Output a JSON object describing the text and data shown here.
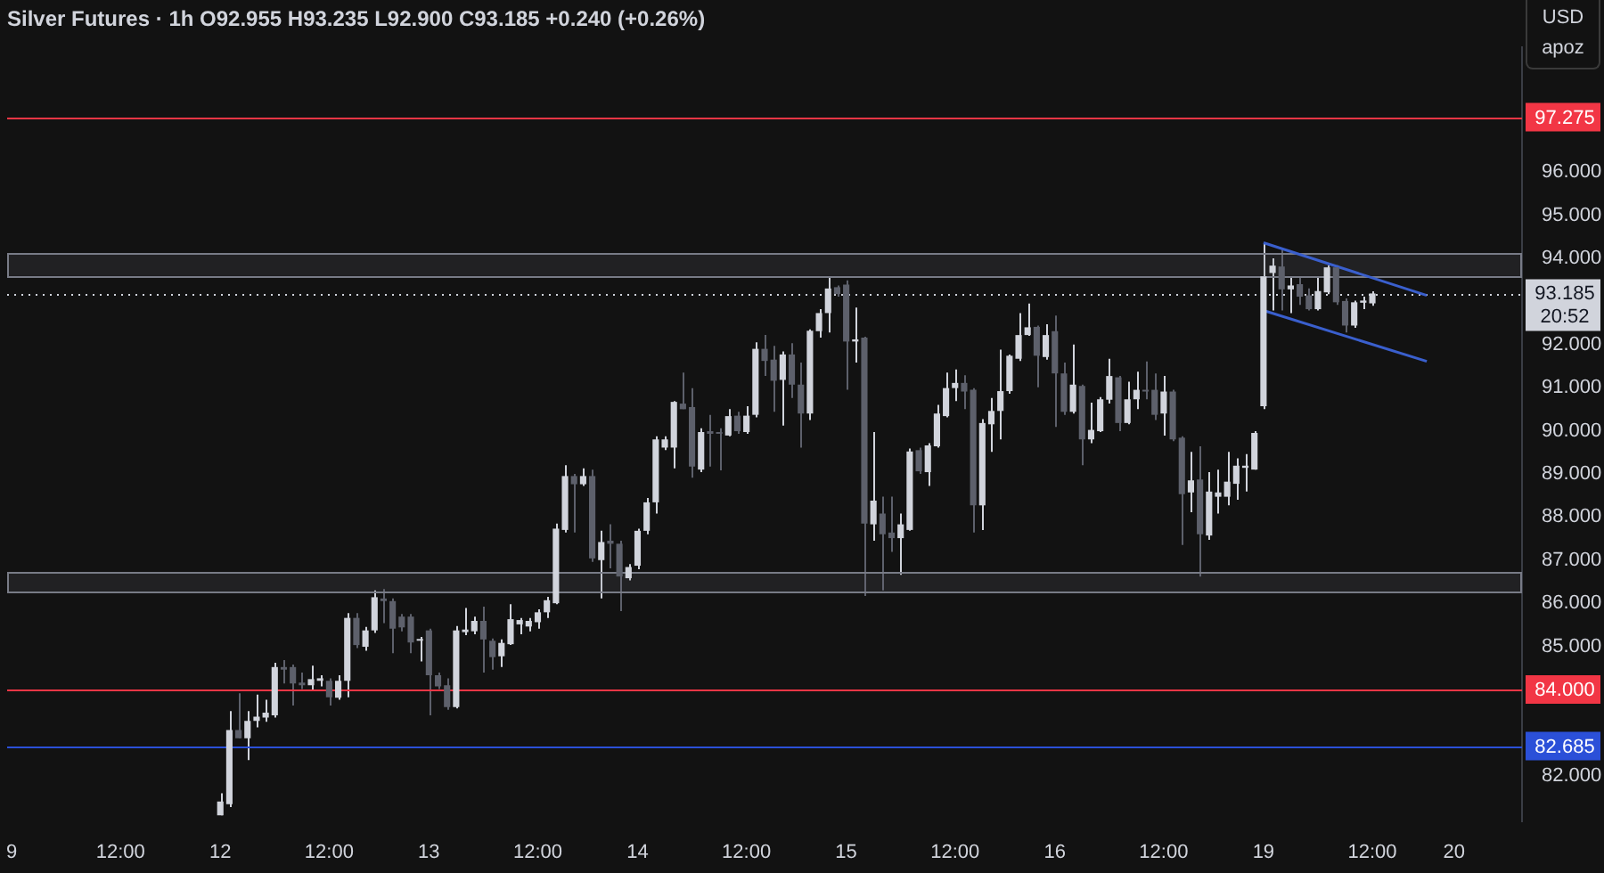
{
  "chart_data": {
    "type": "candlestick",
    "title": "Silver Futures · 1h O92.955 H93.235 L92.900 C93.185 +0.240 (+0.26%)",
    "ylabel": "USD",
    "categories": [
      "9",
      null,
      null,
      null,
      null,
      null,
      null,
      null,
      null,
      null,
      null,
      null,
      "12:00",
      null,
      null,
      null,
      null,
      null,
      null,
      null,
      null,
      null,
      null,
      "12",
      null,
      null,
      null,
      null,
      null,
      null,
      null,
      null,
      null,
      null,
      null,
      "12:00",
      null,
      null,
      null,
      null,
      null,
      null,
      null,
      null,
      null,
      null,
      "13",
      null,
      null,
      null,
      null,
      null,
      null,
      null,
      null,
      null,
      null,
      null,
      "12:00",
      null,
      null,
      null,
      null,
      null,
      null,
      null,
      null,
      null,
      null,
      "14",
      null,
      null,
      null,
      null,
      null,
      null,
      null,
      null,
      null,
      null,
      null,
      "12:00",
      null,
      null,
      null,
      null,
      null,
      null,
      null,
      null,
      null,
      null,
      "15",
      null,
      null,
      null,
      null,
      null,
      null,
      null,
      null,
      null,
      null,
      null,
      "12:00",
      null,
      null,
      null,
      null,
      null,
      null,
      null,
      null,
      null,
      null,
      "16",
      null,
      null,
      null,
      null,
      null,
      null,
      null,
      null,
      null,
      null,
      null,
      "12:00",
      null,
      null,
      null,
      null,
      null,
      null,
      null,
      null,
      null,
      null,
      "19",
      null,
      null,
      null,
      null,
      null,
      null,
      null,
      null,
      null,
      null,
      null,
      "12:00",
      null,
      null,
      null,
      null,
      null,
      null,
      null,
      null,
      "20",
      null,
      null,
      null,
      null,
      null,
      null,
      null
    ],
    "ohlc": [
      null,
      null,
      null,
      null,
      null,
      null,
      null,
      null,
      null,
      null,
      null,
      null,
      null,
      null,
      null,
      null,
      null,
      null,
      null,
      null,
      null,
      null,
      null,
      [
        81.08,
        81.59,
        81.08,
        81.4
      ],
      [
        81.34,
        83.5,
        81.27,
        83.06
      ],
      [
        83.06,
        83.91,
        82.87,
        82.87
      ],
      [
        82.87,
        83.5,
        82.36,
        83.27
      ],
      [
        83.27,
        83.88,
        83.12,
        83.37
      ],
      [
        83.35,
        83.76,
        83.25,
        83.46
      ],
      [
        83.4,
        84.62,
        83.35,
        84.52
      ],
      [
        84.52,
        84.68,
        84.14,
        84.46
      ],
      [
        84.52,
        84.58,
        83.63,
        84.14
      ],
      [
        84.16,
        84.39,
        84.01,
        84.1
      ],
      [
        84.1,
        84.55,
        83.98,
        84.24
      ],
      [
        84.2,
        84.33,
        84.07,
        84.26
      ],
      [
        84.2,
        84.26,
        83.63,
        83.82
      ],
      [
        83.81,
        84.33,
        83.76,
        84.2
      ],
      [
        84.2,
        85.77,
        83.82,
        85.66
      ],
      [
        85.66,
        85.77,
        84.96,
        85.03
      ],
      [
        84.99,
        85.45,
        84.9,
        85.37
      ],
      [
        85.37,
        86.3,
        85.31,
        86.14
      ],
      [
        86.11,
        86.33,
        85.54,
        86.05
      ],
      [
        86.05,
        86.11,
        84.84,
        85.41
      ],
      [
        85.69,
        85.75,
        85.35,
        85.44
      ],
      [
        85.69,
        85.75,
        84.84,
        85.09
      ],
      [
        85.13,
        85.22,
        84.65,
        85.16
      ],
      [
        85.37,
        85.41,
        83.4,
        84.33
      ],
      [
        84.33,
        84.39,
        84.01,
        84.07
      ],
      [
        84.1,
        84.26,
        83.53,
        83.59
      ],
      [
        83.59,
        85.47,
        83.56,
        85.37
      ],
      [
        85.33,
        85.89,
        85.26,
        85.39
      ],
      [
        85.35,
        85.69,
        85.28,
        85.59
      ],
      [
        85.59,
        85.92,
        84.39,
        85.16
      ],
      [
        85.13,
        85.18,
        84.46,
        84.75
      ],
      [
        84.77,
        85.16,
        84.52,
        85.08
      ],
      [
        85.05,
        85.98,
        85.03,
        85.63
      ],
      [
        85.51,
        85.66,
        85.28,
        85.61
      ],
      [
        85.46,
        85.66,
        85.35,
        85.59
      ],
      [
        85.56,
        85.86,
        85.41,
        85.79
      ],
      [
        85.79,
        86.15,
        85.66,
        86.07
      ],
      [
        86.0,
        87.85,
        85.98,
        87.73
      ],
      [
        87.7,
        89.2,
        87.64,
        88.95
      ],
      [
        88.95,
        89.0,
        87.64,
        88.76
      ],
      [
        88.76,
        89.13,
        88.72,
        88.95
      ],
      [
        88.95,
        89.1,
        86.96,
        87.04
      ],
      [
        87.0,
        87.68,
        86.11,
        87.42
      ],
      [
        87.45,
        87.83,
        86.81,
        87.38
      ],
      [
        87.38,
        87.45,
        85.82,
        86.62
      ],
      [
        86.58,
        86.91,
        86.53,
        86.84
      ],
      [
        86.87,
        87.73,
        86.79,
        87.68
      ],
      [
        87.68,
        88.44,
        87.6,
        88.34
      ],
      [
        88.34,
        89.87,
        88.08,
        89.8
      ],
      [
        89.61,
        89.87,
        89.55,
        89.8
      ],
      [
        89.61,
        90.69,
        89.13,
        90.67
      ],
      [
        90.63,
        91.35,
        90.5,
        90.5
      ],
      [
        90.55,
        90.99,
        88.91,
        89.17
      ],
      [
        89.1,
        90.06,
        89.04,
        89.97
      ],
      [
        89.99,
        90.37,
        89.17,
        89.93
      ],
      [
        89.97,
        90.06,
        89.08,
        89.93
      ],
      [
        89.89,
        90.5,
        89.87,
        90.34
      ],
      [
        90.35,
        90.44,
        89.93,
        89.99
      ],
      [
        89.97,
        90.57,
        89.93,
        90.35
      ],
      [
        90.37,
        92.05,
        90.31,
        91.9
      ],
      [
        91.9,
        92.22,
        91.27,
        91.62
      ],
      [
        91.65,
        91.97,
        90.44,
        91.16
      ],
      [
        91.18,
        91.84,
        90.12,
        91.77
      ],
      [
        91.77,
        92.03,
        90.76,
        91.07
      ],
      [
        91.07,
        91.58,
        89.61,
        90.4
      ],
      [
        90.4,
        92.35,
        90.25,
        92.32
      ],
      [
        92.31,
        92.82,
        92.16,
        92.73
      ],
      [
        92.73,
        93.56,
        92.28,
        93.3
      ],
      [
        93.33,
        93.37,
        93.11,
        93.17
      ],
      [
        93.39,
        93.49,
        90.95,
        92.07
      ],
      [
        92.07,
        92.86,
        91.58,
        92.12
      ],
      [
        92.16,
        92.18,
        86.17,
        87.85
      ],
      [
        87.83,
        89.97,
        87.45,
        88.38
      ],
      [
        88.08,
        88.47,
        86.3,
        87.6
      ],
      [
        87.64,
        88.47,
        87.19,
        87.51
      ],
      [
        87.51,
        88.08,
        86.66,
        87.83
      ],
      [
        87.7,
        89.59,
        87.68,
        89.52
      ],
      [
        89.55,
        89.61,
        89.0,
        89.06
      ],
      [
        89.04,
        89.71,
        88.72,
        89.66
      ],
      [
        89.64,
        90.6,
        89.61,
        90.4
      ],
      [
        90.34,
        91.35,
        90.31,
        90.99
      ],
      [
        90.99,
        91.42,
        90.69,
        91.11
      ],
      [
        91.11,
        91.29,
        90.5,
        90.91
      ],
      [
        90.95,
        90.99,
        87.64,
        88.27
      ],
      [
        88.27,
        90.27,
        87.7,
        90.18
      ],
      [
        90.15,
        90.76,
        89.51,
        90.46
      ],
      [
        90.46,
        91.88,
        89.8,
        90.92
      ],
      [
        90.92,
        91.77,
        90.86,
        91.74
      ],
      [
        91.67,
        92.73,
        91.62,
        92.22
      ],
      [
        92.22,
        92.95,
        92.2,
        92.4
      ],
      [
        92.41,
        92.44,
        91.01,
        91.74
      ],
      [
        91.71,
        92.47,
        91.65,
        92.22
      ],
      [
        92.31,
        92.67,
        90.09,
        91.33
      ],
      [
        91.33,
        91.58,
        90.37,
        90.44
      ],
      [
        90.44,
        92.0,
        90.4,
        91.07
      ],
      [
        91.04,
        91.07,
        89.2,
        89.8
      ],
      [
        89.8,
        90.65,
        89.71,
        90.02
      ],
      [
        89.99,
        90.78,
        89.97,
        90.73
      ],
      [
        90.72,
        91.67,
        90.63,
        91.27
      ],
      [
        91.24,
        91.27,
        89.99,
        90.18
      ],
      [
        90.18,
        91.14,
        90.15,
        90.73
      ],
      [
        90.73,
        91.37,
        90.5,
        90.95
      ],
      [
        90.95,
        91.61,
        90.73,
        90.91
      ],
      [
        90.95,
        91.33,
        90.25,
        90.37
      ],
      [
        90.4,
        91.27,
        89.89,
        90.91
      ],
      [
        90.91,
        90.95,
        89.76,
        89.8
      ],
      [
        89.84,
        89.87,
        87.35,
        88.53
      ],
      [
        88.57,
        89.51,
        88.11,
        88.85
      ],
      [
        88.87,
        89.64,
        86.62,
        87.6
      ],
      [
        87.57,
        89.04,
        87.47,
        88.59
      ],
      [
        88.47,
        89.1,
        88.08,
        88.57
      ],
      [
        88.47,
        89.51,
        88.27,
        88.82
      ],
      [
        88.77,
        89.36,
        88.4,
        89.19
      ],
      [
        89.14,
        89.46,
        88.59,
        89.19
      ],
      [
        89.1,
        89.99,
        89.1,
        89.95
      ],
      [
        90.57,
        94.36,
        90.5,
        93.58
      ],
      [
        93.66,
        94.0,
        92.79,
        93.83
      ],
      [
        93.81,
        94.22,
        92.79,
        93.28
      ],
      [
        93.28,
        93.58,
        92.73,
        93.37
      ],
      [
        93.4,
        93.56,
        92.92,
        93.11
      ],
      [
        93.14,
        93.3,
        92.79,
        92.82
      ],
      [
        92.82,
        93.58,
        92.79,
        93.24
      ],
      [
        93.21,
        93.84,
        93.17,
        93.79
      ],
      [
        93.79,
        93.84,
        92.92,
        92.98
      ],
      [
        93.01,
        93.07,
        92.28,
        92.44
      ],
      [
        92.44,
        93.02,
        92.39,
        92.98
      ],
      [
        92.97,
        93.11,
        92.82,
        93.02
      ],
      [
        92.955,
        93.235,
        92.9,
        93.185
      ],
      null,
      null,
      null,
      null,
      null,
      null,
      null,
      null,
      null,
      null,
      null,
      null,
      null,
      null,
      null,
      null
    ],
    "colors": [
      null,
      null,
      null,
      null,
      null,
      null,
      null,
      null,
      null,
      null,
      null,
      null,
      null,
      null,
      null,
      null,
      null,
      null,
      null,
      null,
      null,
      null,
      null,
      "#d1d4dc",
      "#d1d4dc",
      "#5d606b",
      "#d1d4dc",
      "#d1d4dc",
      "#d1d4dc",
      "#d1d4dc",
      "#5d606b",
      "#5d606b",
      "#5d606b",
      "#d1d4dc",
      "#d1d4dc",
      "#5d606b",
      "#d1d4dc",
      "#d1d4dc",
      "#5d606b",
      "#d1d4dc",
      "#d1d4dc",
      "#5d606b",
      "#5d606b",
      "#5d606b",
      "#5d606b",
      "#d1d4dc",
      "#5d606b",
      "#5d606b",
      "#5d606b",
      "#d1d4dc",
      "#d1d4dc",
      "#d1d4dc",
      "#5d606b",
      "#5d606b",
      "#d1d4dc",
      "#d1d4dc",
      "#d1d4dc",
      "#d1d4dc",
      "#d1d4dc",
      "#d1d4dc",
      "#d1d4dc",
      "#d1d4dc",
      "#5d606b",
      "#d1d4dc",
      "#5d606b",
      "#d1d4dc",
      "#5d606b",
      "#5d606b",
      "#d1d4dc",
      "#d1d4dc",
      "#d1d4dc",
      "#d1d4dc",
      "#d1d4dc",
      "#d1d4dc",
      "#5d606b",
      "#5d606b",
      "#d1d4dc",
      "#5d606b",
      "#5d606b",
      "#d1d4dc",
      "#5d606b",
      "#d1d4dc",
      "#d1d4dc",
      "#5d606b",
      "#5d606b",
      "#d1d4dc",
      "#5d606b",
      "#5d606b",
      "#d1d4dc",
      "#d1d4dc",
      "#d1d4dc",
      "#5d606b",
      "#5d606b",
      "#d1d4dc",
      "#5d606b",
      "#d1d4dc",
      "#5d606b",
      "#5d606b",
      "#d1d4dc",
      "#d1d4dc",
      "#5d606b",
      "#d1d4dc",
      "#d1d4dc",
      "#d1d4dc",
      "#d1d4dc",
      "#5d606b",
      "#5d606b",
      "#d1d4dc",
      "#d1d4dc",
      "#d1d4dc",
      "#d1d4dc",
      "#d1d4dc",
      "#d1d4dc",
      "#5d606b",
      "#d1d4dc",
      "#5d606b",
      "#5d606b",
      "#d1d4dc",
      "#5d606b",
      "#d1d4dc",
      "#d1d4dc",
      "#d1d4dc",
      "#5d606b",
      "#d1d4dc",
      "#d1d4dc",
      "#5d606b",
      "#5d606b",
      "#d1d4dc",
      "#5d606b",
      "#5d606b",
      "#d1d4dc",
      "#5d606b",
      "#d1d4dc",
      "#d1d4dc",
      "#d1d4dc",
      "#d1d4dc",
      "#d1d4dc",
      "#d1d4dc",
      "#d1d4dc",
      "#d1d4dc",
      "#5d606b",
      "#d1d4dc",
      "#5d606b",
      "#5d606b",
      "#d1d4dc",
      "#d1d4dc",
      "#5d606b",
      "#5d606b",
      "#d1d4dc",
      "#d1d4dc",
      "#d1d4dc",
      null,
      null,
      null,
      null,
      null,
      null,
      null,
      null,
      null,
      null,
      null,
      null,
      null,
      null,
      null,
      null
    ],
    "series": [
      {
        "type": "line",
        "color": "#3a5fcd",
        "values": [
          null,
          null,
          null,
          null,
          null,
          null,
          null,
          null,
          null,
          null,
          null,
          null,
          null,
          null,
          null,
          null,
          null,
          null,
          null,
          null,
          null,
          null,
          null,
          null,
          null,
          null,
          null,
          null,
          null,
          null,
          null,
          null,
          null,
          null,
          null,
          null,
          null,
          null,
          null,
          null,
          null,
          null,
          null,
          null,
          null,
          null,
          null,
          null,
          null,
          null,
          null,
          null,
          null,
          null,
          null,
          null,
          null,
          null,
          null,
          null,
          null,
          null,
          null,
          null,
          null,
          null,
          null,
          null,
          null,
          null,
          null,
          null,
          null,
          null,
          null,
          null,
          null,
          null,
          null,
          null,
          null,
          null,
          null,
          null,
          null,
          null,
          null,
          null,
          null,
          null,
          null,
          null,
          null,
          null,
          null,
          null,
          null,
          null,
          null,
          null,
          null,
          null,
          null,
          null,
          null,
          null,
          null,
          null,
          null,
          null,
          null,
          null,
          null,
          null,
          null,
          null,
          null,
          null,
          null,
          null,
          null,
          null,
          null,
          null,
          null,
          null,
          null,
          null,
          null,
          null,
          null,
          null,
          null,
          null,
          null,
          null,
          null,
          null,
          94.36,
          null,
          null,
          null,
          null,
          null,
          null,
          null,
          null,
          null,
          null,
          null,
          null,
          null,
          null,
          null,
          null,
          null,
          93.14,
          null,
          null,
          null,
          null,
          null,
          null,
          null,
          null,
          null,
          null
        ]
      },
      {
        "type": "line",
        "color": "#3a5fcd",
        "values": [
          null,
          null,
          null,
          null,
          null,
          null,
          null,
          null,
          null,
          null,
          null,
          null,
          null,
          null,
          null,
          null,
          null,
          null,
          null,
          null,
          null,
          null,
          null,
          null,
          null,
          null,
          null,
          null,
          null,
          null,
          null,
          null,
          null,
          null,
          null,
          null,
          null,
          null,
          null,
          null,
          null,
          null,
          null,
          null,
          null,
          null,
          null,
          null,
          null,
          null,
          null,
          null,
          null,
          null,
          null,
          null,
          null,
          null,
          null,
          null,
          null,
          null,
          null,
          null,
          null,
          null,
          null,
          null,
          null,
          null,
          null,
          null,
          null,
          null,
          null,
          null,
          null,
          null,
          null,
          null,
          null,
          null,
          null,
          null,
          null,
          null,
          null,
          null,
          null,
          null,
          null,
          null,
          null,
          null,
          null,
          null,
          null,
          null,
          null,
          null,
          null,
          null,
          null,
          null,
          null,
          null,
          null,
          null,
          null,
          null,
          null,
          null,
          null,
          null,
          null,
          null,
          null,
          null,
          null,
          null,
          null,
          null,
          null,
          null,
          null,
          null,
          null,
          null,
          null,
          null,
          null,
          null,
          null,
          null,
          null,
          null,
          null,
          null,
          92.79,
          null,
          null,
          null,
          null,
          null,
          null,
          null,
          null,
          null,
          null,
          null,
          null,
          null,
          null,
          null,
          null,
          null,
          91.61,
          null,
          null,
          null,
          null,
          null,
          null,
          null,
          null,
          null,
          null
        ]
      }
    ],
    "ylim": [
      80.95,
      98.9
    ],
    "yticks": [
      {
        "value": 82,
        "label": "82.000"
      },
      {
        "value": 85,
        "label": "85.000"
      },
      {
        "value": 86,
        "label": "86.000"
      },
      {
        "value": 87,
        "label": "87.000"
      },
      {
        "value": 88,
        "label": "88.000"
      },
      {
        "value": 89,
        "label": "89.000"
      },
      {
        "value": 90,
        "label": "90.000"
      },
      {
        "value": 91,
        "label": "91.000"
      },
      {
        "value": 92,
        "label": "92.000"
      },
      {
        "value": 94,
        "label": "94.000"
      },
      {
        "value": 95,
        "label": "95.000"
      },
      {
        "value": 96,
        "label": "96.000"
      }
    ],
    "ref_lines": [
      {
        "axis": "y",
        "value": 97.275,
        "label": "97.275",
        "color": "#f23645"
      },
      {
        "axis": "y",
        "value": 84,
        "label": "84.000",
        "color": "#f23645"
      },
      {
        "axis": "y",
        "value": 82.685,
        "label": "82.685",
        "color": "#2b50d8"
      },
      {
        "axis": "y",
        "value": 93.185,
        "label": "93.185\n20:52",
        "color": "#d1d4dc",
        "line_style": "dotted"
      }
    ],
    "bands": [
      {
        "axis": "y",
        "from": 93.59,
        "to": 94.12,
        "color": "#787b86"
      },
      {
        "axis": "y",
        "from": 86.27,
        "to": 86.71,
        "color": "#787b86"
      }
    ],
    "annotations": [
      "apoz"
    ],
    "legend": false
  }
}
